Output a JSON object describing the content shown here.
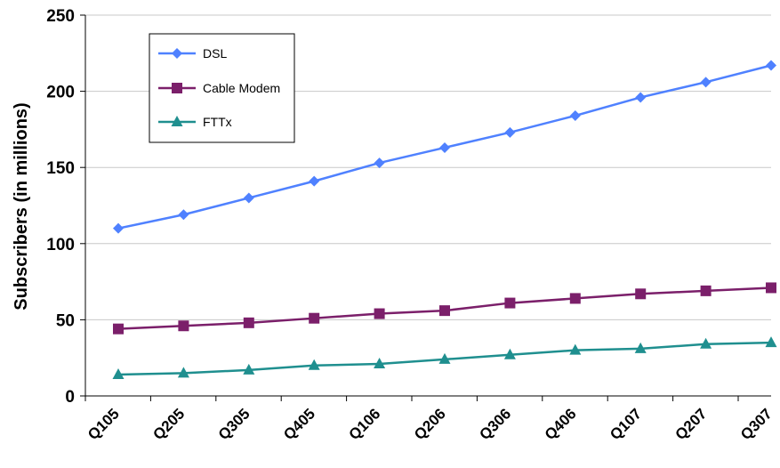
{
  "chart_data": {
    "type": "line",
    "title": "",
    "xlabel": "",
    "ylabel": "Subscribers (in millions)",
    "ylim": [
      0,
      250
    ],
    "yticks": [
      "0",
      "50",
      "100",
      "150",
      "200",
      "250"
    ],
    "categories": [
      "Q105",
      "Q205",
      "Q305",
      "Q405",
      "Q106",
      "Q206",
      "Q306",
      "Q406",
      "Q107",
      "Q207",
      "Q307"
    ],
    "grid": true,
    "legend_position": "top-left",
    "series": [
      {
        "name": "DSL",
        "color": "#4F81FF",
        "marker": "diamond",
        "values": [
          110,
          119,
          130,
          141,
          153,
          163,
          173,
          184,
          196,
          206,
          217
        ]
      },
      {
        "name": "Cable Modem",
        "color": "#7B1F6A",
        "marker": "square",
        "values": [
          44,
          46,
          48,
          51,
          54,
          56,
          61,
          64,
          67,
          69,
          71
        ]
      },
      {
        "name": "FTTx",
        "color": "#1F8F8F",
        "marker": "triangle",
        "values": [
          14,
          15,
          17,
          20,
          21,
          24,
          27,
          30,
          31,
          34,
          35
        ]
      }
    ]
  }
}
